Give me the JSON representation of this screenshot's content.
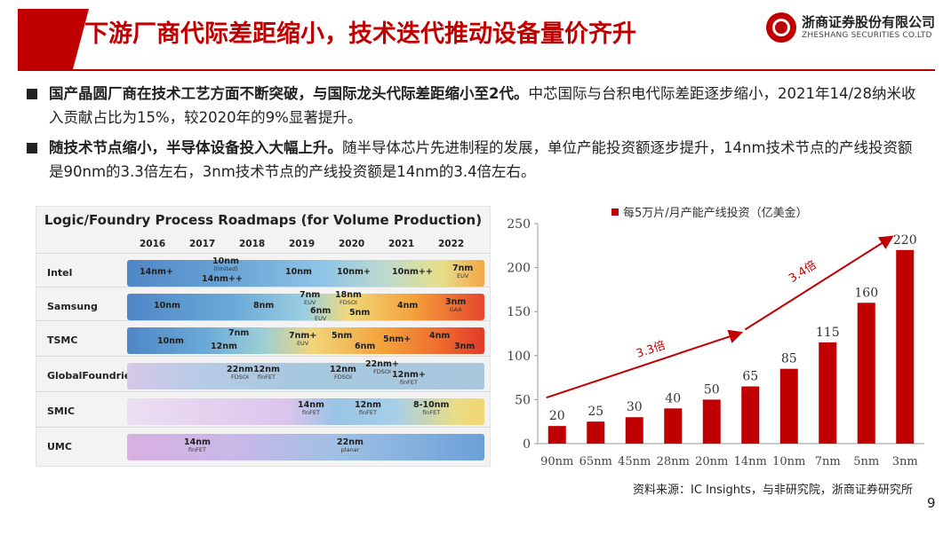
{
  "header": {
    "title": "下游厂商代际差距缩小，技术迭代推动设备量价齐升"
  },
  "logo": {
    "name_cn": "浙商证券股份有限公司",
    "name_en": "ZHESHANG SECURITIES CO.LTD",
    "color": "#c00000"
  },
  "bullets": [
    {
      "bold": "国产晶圆厂商在技术工艺方面不断突破，与国际龙头代际差距缩小至2代。",
      "text": "中芯国际与台积电代际差距逐步缩小，2021年14/28纳米收入贡献占比为15%，较2020年的9%显著提升。"
    },
    {
      "bold": "随技术节点缩小，半导体设备投入大幅上升。",
      "text": "随半导体芯片先进制程的发展，单位产能投资额逐步提升，14nm技术节点的产线投资额是90nm的3.3倍左右，3nm技术节点的产线投资额是14nm的3.4倍左右。"
    }
  ],
  "roadmap": {
    "title": "Logic/Foundry Process Roadmaps (for Volume Production)",
    "years": [
      "2016",
      "2017",
      "2018",
      "2019",
      "2020",
      "2021",
      "2022"
    ],
    "rows": [
      {
        "company": "Intel",
        "nodes": [
          {
            "label": "14nm+",
            "sub": ""
          },
          {
            "label": "10nm",
            "sub": "(limited)"
          },
          {
            "label": "14nm++",
            "sub": ""
          },
          {
            "label": "10nm",
            "sub": ""
          },
          {
            "label": "10nm+",
            "sub": ""
          },
          {
            "label": "10nm++",
            "sub": ""
          },
          {
            "label": "7nm",
            "sub": "EUV"
          }
        ]
      },
      {
        "company": "Samsung",
        "nodes": [
          {
            "label": "10nm",
            "sub": ""
          },
          {
            "label": "8nm",
            "sub": ""
          },
          {
            "label": "7nm",
            "sub": "EUV"
          },
          {
            "label": "6nm",
            "sub": "EUV"
          },
          {
            "label": "18nm",
            "sub": "FDSOI"
          },
          {
            "label": "5nm",
            "sub": ""
          },
          {
            "label": "4nm",
            "sub": ""
          },
          {
            "label": "3nm",
            "sub": "GAA"
          }
        ]
      },
      {
        "company": "TSMC",
        "nodes": [
          {
            "label": "10nm",
            "sub": ""
          },
          {
            "label": "12nm",
            "sub": ""
          },
          {
            "label": "7nm",
            "sub": ""
          },
          {
            "label": "7nm+",
            "sub": "EUV"
          },
          {
            "label": "5nm",
            "sub": ""
          },
          {
            "label": "6nm",
            "sub": ""
          },
          {
            "label": "5nm+",
            "sub": ""
          },
          {
            "label": "4nm",
            "sub": ""
          },
          {
            "label": "3nm",
            "sub": ""
          }
        ]
      },
      {
        "company": "GlobalFoundries",
        "nodes": [
          {
            "label": "22nm",
            "sub": "FDSOI"
          },
          {
            "label": "12nm",
            "sub": "finFET"
          },
          {
            "label": "12nm",
            "sub": "FDSOI"
          },
          {
            "label": "22nm+",
            "sub": "FDSOI"
          },
          {
            "label": "12nm+",
            "sub": "finFET"
          }
        ]
      },
      {
        "company": "SMIC",
        "nodes": [
          {
            "label": "14nm",
            "sub": "finFET"
          },
          {
            "label": "12nm",
            "sub": "finFET"
          },
          {
            "label": "8-10nm",
            "sub": "finFET"
          }
        ]
      },
      {
        "company": "UMC",
        "nodes": [
          {
            "label": "14nm",
            "sub": "finFET"
          },
          {
            "label": "22nm",
            "sub": "planar"
          }
        ]
      }
    ]
  },
  "chart_data": {
    "type": "bar",
    "legend": "每5万片/月产能产线投资（亿美金）",
    "legend_position": "top",
    "categories": [
      "90nm",
      "65nm",
      "45nm",
      "28nm",
      "20nm",
      "14nm",
      "10nm",
      "7nm",
      "5nm",
      "3nm"
    ],
    "values": [
      20,
      25,
      30,
      40,
      50,
      65,
      85,
      115,
      160,
      220
    ],
    "ylim": [
      0,
      250
    ],
    "yticks": [
      0,
      50,
      100,
      150,
      200,
      250
    ],
    "grid": false,
    "bar_color": "#c00000",
    "annotations": [
      {
        "text": "3.3倍",
        "from": "90nm",
        "to": "14nm"
      },
      {
        "text": "3.4倍",
        "from": "14nm",
        "to": "3nm"
      }
    ]
  },
  "source": "资料来源：IC Insights，与非研究院，浙商证券研究所",
  "page_number": "9"
}
